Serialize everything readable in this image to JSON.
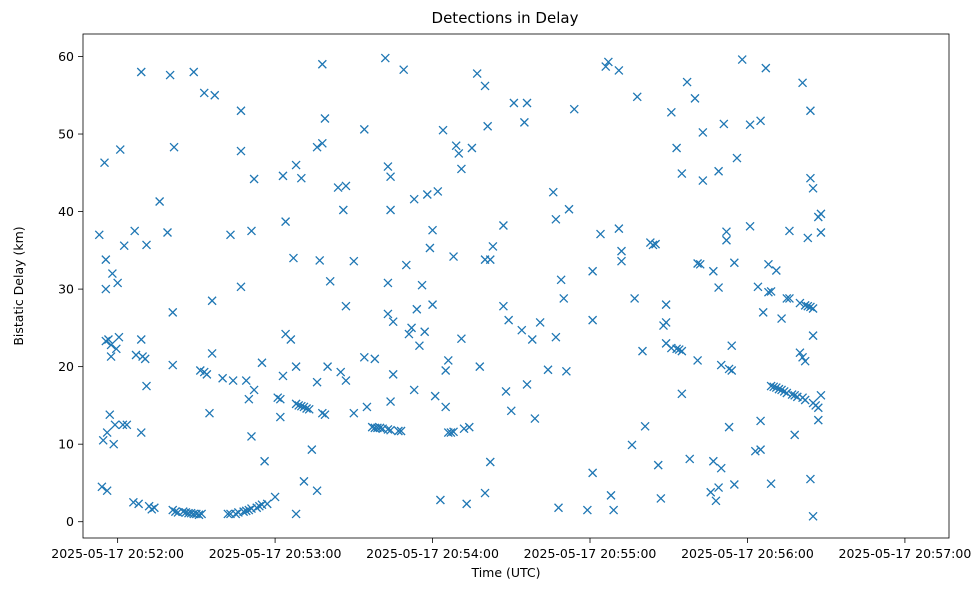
{
  "chart_data": {
    "type": "scatter",
    "title": "Detections in Delay",
    "xlabel": "Time (UTC)",
    "ylabel": "Bistatic Delay (km)",
    "x_ticks": [
      "2025-05-17 20:52:00",
      "2025-05-17 20:53:00",
      "2025-05-17 20:54:00",
      "2025-05-17 20:55:00",
      "2025-05-17 20:56:00",
      "2025-05-17 20:57:00"
    ],
    "y_ticks": [
      0,
      10,
      20,
      30,
      40,
      50,
      60
    ],
    "x_unit": "seconds after 2025-05-17 20:52:00",
    "xlim": [
      -13.2,
      316.8
    ],
    "ylim": [
      -2.1,
      62.9
    ],
    "grid": false,
    "marker": "x",
    "color": "#1f77b4",
    "points": [
      [
        -7,
        37
      ],
      [
        -6,
        4.5
      ],
      [
        -5.5,
        10.5
      ],
      [
        -5,
        46.3
      ],
      [
        -4.5,
        23.3
      ],
      [
        -4,
        11.5
      ],
      [
        -4.5,
        33.8
      ],
      [
        -4.5,
        30
      ],
      [
        -4,
        4
      ],
      [
        -3.5,
        23.5
      ],
      [
        -3,
        13.8
      ],
      [
        -2.5,
        21.3
      ],
      [
        -2.5,
        22.8
      ],
      [
        -2,
        32
      ],
      [
        -1.5,
        10
      ],
      [
        -1,
        12.5
      ],
      [
        -0.5,
        22.3
      ],
      [
        0,
        30.8
      ],
      [
        0.5,
        23.8
      ],
      [
        1,
        48
      ],
      [
        2,
        12.5
      ],
      [
        2.5,
        35.6
      ],
      [
        3.5,
        12.5
      ],
      [
        6,
        2.5
      ],
      [
        6.5,
        37.5
      ],
      [
        7,
        21.5
      ],
      [
        8,
        2.3
      ],
      [
        9,
        58
      ],
      [
        9,
        23.5
      ],
      [
        9,
        11.5
      ],
      [
        9.5,
        21.3
      ],
      [
        10.5,
        21
      ],
      [
        11,
        17.5
      ],
      [
        11,
        35.7
      ],
      [
        12,
        2
      ],
      [
        13,
        1.6
      ],
      [
        14,
        1.8
      ],
      [
        16,
        41.3
      ],
      [
        19,
        37.3
      ],
      [
        20,
        57.6
      ],
      [
        21,
        27
      ],
      [
        21.5,
        48.3
      ],
      [
        21,
        20.2
      ],
      [
        21,
        1.5
      ],
      [
        22,
        1.3
      ],
      [
        23,
        1.2
      ],
      [
        25,
        1.3
      ],
      [
        26,
        1.2
      ],
      [
        27,
        1.1
      ],
      [
        28,
        1.1
      ],
      [
        29,
        1.0
      ],
      [
        29,
        58
      ],
      [
        30,
        1.0
      ],
      [
        31,
        0.9
      ],
      [
        31.5,
        19.5
      ],
      [
        32,
        1.0
      ],
      [
        33,
        55.3
      ],
      [
        33,
        19.3
      ],
      [
        34,
        19
      ],
      [
        35,
        14
      ],
      [
        36,
        21.7
      ],
      [
        36,
        28.5
      ],
      [
        37,
        55
      ],
      [
        40,
        18.5
      ],
      [
        42,
        1.0
      ],
      [
        43,
        1.0
      ],
      [
        43,
        37
      ],
      [
        44,
        18.2
      ],
      [
        45,
        1.0
      ],
      [
        46,
        1.2
      ],
      [
        47,
        53
      ],
      [
        47,
        47.8
      ],
      [
        47,
        30.3
      ],
      [
        48,
        1.3
      ],
      [
        49,
        1.4
      ],
      [
        49,
        18.2
      ],
      [
        50,
        1.5
      ],
      [
        50,
        15.8
      ],
      [
        51,
        37.5
      ],
      [
        51,
        11
      ],
      [
        51,
        1.7
      ],
      [
        52,
        44.2
      ],
      [
        52,
        17
      ],
      [
        53,
        1.8
      ],
      [
        54,
        2
      ],
      [
        55,
        2.2
      ],
      [
        55,
        20.5
      ],
      [
        56,
        7.8
      ],
      [
        57,
        2.3
      ],
      [
        60,
        3.2
      ],
      [
        61,
        16
      ],
      [
        62,
        13.5
      ],
      [
        62,
        15.8
      ],
      [
        63,
        18.8
      ],
      [
        63,
        44.6
      ],
      [
        64,
        24.2
      ],
      [
        64,
        38.7
      ],
      [
        66,
        23.5
      ],
      [
        67,
        34
      ],
      [
        68,
        1
      ],
      [
        68,
        46
      ],
      [
        68,
        20
      ],
      [
        68,
        15.2
      ],
      [
        69,
        15
      ],
      [
        70,
        44.3
      ],
      [
        70,
        14.9
      ],
      [
        71,
        5.2
      ],
      [
        71,
        14.8
      ],
      [
        72,
        14.6
      ],
      [
        73,
        14.5
      ],
      [
        74,
        9.3
      ],
      [
        76,
        18
      ],
      [
        76,
        4
      ],
      [
        76,
        48.3
      ],
      [
        77,
        33.7
      ],
      [
        78,
        14
      ],
      [
        78,
        48.8
      ],
      [
        78,
        59
      ],
      [
        79,
        13.8
      ],
      [
        79,
        52
      ],
      [
        80,
        20
      ],
      [
        81,
        31
      ],
      [
        84,
        43.1
      ],
      [
        85,
        19.3
      ],
      [
        86,
        40.2
      ],
      [
        87,
        43.3
      ],
      [
        87,
        27.8
      ],
      [
        87,
        18.2
      ],
      [
        90,
        33.6
      ],
      [
        90,
        14
      ],
      [
        94,
        50.6
      ],
      [
        94,
        21.2
      ],
      [
        95,
        14.8
      ],
      [
        97,
        12.2
      ],
      [
        98,
        21
      ],
      [
        98,
        12.1
      ],
      [
        99,
        12.1
      ],
      [
        100,
        12.1
      ],
      [
        101,
        12
      ],
      [
        102,
        59.8
      ],
      [
        103,
        26.8
      ],
      [
        103,
        11.9
      ],
      [
        103,
        30.8
      ],
      [
        103,
        45.8
      ],
      [
        104,
        44.5
      ],
      [
        104,
        40.2
      ],
      [
        104,
        15.5
      ],
      [
        104,
        11.8
      ],
      [
        105,
        19
      ],
      [
        105,
        25.8
      ],
      [
        107,
        11.7
      ],
      [
        108,
        11.7
      ],
      [
        109,
        58.3
      ],
      [
        110,
        33.1
      ],
      [
        111,
        24.2
      ],
      [
        112,
        25
      ],
      [
        113,
        41.6
      ],
      [
        113,
        17
      ],
      [
        114,
        27.4
      ],
      [
        115,
        22.7
      ],
      [
        116,
        30.5
      ],
      [
        117,
        24.5
      ],
      [
        118,
        42.2
      ],
      [
        119,
        35.3
      ],
      [
        120,
        28
      ],
      [
        120,
        37.6
      ],
      [
        121,
        16.2
      ],
      [
        122,
        42.6
      ],
      [
        123,
        2.8
      ],
      [
        124,
        50.5
      ],
      [
        125,
        19.5
      ],
      [
        125,
        14.8
      ],
      [
        126,
        20.8
      ],
      [
        126,
        11.5
      ],
      [
        127,
        11.5
      ],
      [
        128,
        11.6
      ],
      [
        128,
        34.2
      ],
      [
        129,
        48.5
      ],
      [
        130,
        47.5
      ],
      [
        131,
        45.5
      ],
      [
        131,
        23.6
      ],
      [
        132,
        12
      ],
      [
        133,
        2.3
      ],
      [
        134,
        12.2
      ],
      [
        135,
        48.2
      ],
      [
        137,
        57.8
      ],
      [
        138,
        20
      ],
      [
        140,
        56.2
      ],
      [
        140,
        3.7
      ],
      [
        140,
        33.8
      ],
      [
        141,
        51
      ],
      [
        142,
        33.8
      ],
      [
        142,
        7.7
      ],
      [
        143,
        35.5
      ],
      [
        147,
        27.8
      ],
      [
        147,
        38.2
      ],
      [
        148,
        16.8
      ],
      [
        149,
        26
      ],
      [
        150,
        14.3
      ],
      [
        151,
        54
      ],
      [
        154,
        24.7
      ],
      [
        155,
        51.5
      ],
      [
        156,
        54
      ],
      [
        156,
        17.7
      ],
      [
        158,
        23.5
      ],
      [
        159,
        13.3
      ],
      [
        161,
        25.7
      ],
      [
        164,
        19.6
      ],
      [
        166,
        42.5
      ],
      [
        167,
        23.8
      ],
      [
        167,
        39
      ],
      [
        168,
        1.8
      ],
      [
        169,
        31.2
      ],
      [
        170,
        28.8
      ],
      [
        171,
        19.4
      ],
      [
        172,
        40.3
      ],
      [
        174,
        53.2
      ],
      [
        179,
        1.5
      ],
      [
        181,
        32.3
      ],
      [
        181,
        26
      ],
      [
        181,
        6.3
      ],
      [
        184,
        37.1
      ],
      [
        186,
        58.7
      ],
      [
        187,
        59.3
      ],
      [
        188,
        3.4
      ],
      [
        189,
        1.5
      ],
      [
        191,
        37.8
      ],
      [
        191,
        58.2
      ],
      [
        192,
        33.6
      ],
      [
        192,
        34.9
      ],
      [
        196,
        9.9
      ],
      [
        197,
        28.8
      ],
      [
        198,
        54.8
      ],
      [
        200,
        22
      ],
      [
        201,
        12.3
      ],
      [
        203,
        36
      ],
      [
        204,
        35.7
      ],
      [
        205,
        35.8
      ],
      [
        206,
        7.3
      ],
      [
        207,
        3
      ],
      [
        208,
        25.3
      ],
      [
        209,
        23
      ],
      [
        209,
        25.7
      ],
      [
        209,
        28
      ],
      [
        211,
        22.4
      ],
      [
        211,
        52.8
      ],
      [
        213,
        48.2
      ],
      [
        213,
        22.3
      ],
      [
        214,
        22.2
      ],
      [
        215,
        22
      ],
      [
        215,
        44.9
      ],
      [
        215,
        16.5
      ],
      [
        217,
        56.7
      ],
      [
        218,
        8.1
      ],
      [
        220,
        54.6
      ],
      [
        221,
        33.3
      ],
      [
        221,
        20.8
      ],
      [
        222,
        33.2
      ],
      [
        223,
        44
      ],
      [
        223,
        50.2
      ],
      [
        226,
        3.8
      ],
      [
        227,
        7.8
      ],
      [
        227,
        32.3
      ],
      [
        228,
        2.7
      ],
      [
        229,
        4.4
      ],
      [
        229,
        45.2
      ],
      [
        229,
        30.2
      ],
      [
        230,
        20.2
      ],
      [
        230,
        6.9
      ],
      [
        231,
        51.3
      ],
      [
        232,
        37.4
      ],
      [
        232,
        36.3
      ],
      [
        233,
        12.2
      ],
      [
        233,
        19.7
      ],
      [
        234,
        19.5
      ],
      [
        234,
        22.7
      ],
      [
        235,
        4.8
      ],
      [
        235,
        33.4
      ],
      [
        236,
        46.9
      ],
      [
        238,
        59.6
      ],
      [
        241,
        38.1
      ],
      [
        241,
        51.2
      ],
      [
        243,
        9.1
      ],
      [
        244,
        30.3
      ],
      [
        245,
        9.3
      ],
      [
        245,
        13
      ],
      [
        245,
        51.7
      ],
      [
        246,
        27
      ],
      [
        247,
        58.5
      ],
      [
        248,
        33.2
      ],
      [
        248,
        29.6
      ],
      [
        249,
        29.7
      ],
      [
        249,
        4.9
      ],
      [
        249,
        17.5
      ],
      [
        250,
        17.4
      ],
      [
        251,
        32.4
      ],
      [
        251,
        17.3
      ],
      [
        252,
        17.1
      ],
      [
        253,
        26.2
      ],
      [
        253,
        17
      ],
      [
        254,
        16.8
      ],
      [
        255,
        28.8
      ],
      [
        255,
        16.6
      ],
      [
        256,
        28.8
      ],
      [
        256,
        37.5
      ],
      [
        257,
        16.4
      ],
      [
        258,
        11.2
      ],
      [
        258,
        16.3
      ],
      [
        259,
        16.1
      ],
      [
        260,
        21.8
      ],
      [
        260,
        28.2
      ],
      [
        261,
        56.6
      ],
      [
        261,
        16
      ],
      [
        261,
        21.2
      ],
      [
        262,
        20.7
      ],
      [
        262,
        15.7
      ],
      [
        262,
        27.9
      ],
      [
        263,
        36.6
      ],
      [
        263,
        27.8
      ],
      [
        264,
        53
      ],
      [
        264,
        44.3
      ],
      [
        264,
        5.5
      ],
      [
        264,
        27.7
      ],
      [
        265,
        15.3
      ],
      [
        265,
        43
      ],
      [
        265,
        27.5
      ],
      [
        265,
        24
      ],
      [
        265,
        0.7
      ],
      [
        266,
        15
      ],
      [
        267,
        39.3
      ],
      [
        267,
        13.1
      ],
      [
        267,
        14.7
      ],
      [
        268,
        37.3
      ],
      [
        268,
        39.7
      ],
      [
        268,
        16.3
      ]
    ]
  }
}
